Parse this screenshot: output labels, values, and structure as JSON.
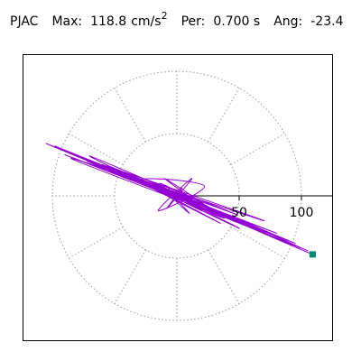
{
  "header": {
    "station": "PJAC",
    "max_label": "Max:",
    "max_value": "118.8",
    "max_unit": "cm/s",
    "max_unit_exp": "2",
    "per_label": "Per:",
    "per_value": "0.700 s",
    "ang_label": "Ang:",
    "ang_value": "-23.4"
  },
  "colors": {
    "trace": "#9400d3",
    "end_marker": "#008b74",
    "grid": "#9a9a9a",
    "axis": "#000000"
  },
  "chart_data": {
    "type": "scatter",
    "title": "PJAC  Max: 118.8 cm/s2  Per: 0.700 s  Ang: -23.4",
    "radial_ticks": [
      50,
      100
    ],
    "tick_labels": [
      "50",
      "100"
    ],
    "rings": [
      50,
      100
    ],
    "spokes_deg": [
      0,
      30,
      60,
      90,
      120,
      150,
      180,
      210,
      240,
      270,
      300,
      330
    ],
    "rmax": 100,
    "end_point": {
      "x": 109,
      "y": -47
    },
    "trace": {
      "name": "",
      "x": [
        0,
        4,
        -8,
        12,
        -15,
        22,
        -30,
        38,
        -45,
        60,
        -72,
        80,
        -90,
        95,
        -85,
        70,
        -60,
        48,
        -40,
        35,
        -28,
        20,
        -14,
        10,
        -6,
        30,
        -50,
        70,
        -95,
        105,
        -100,
        80,
        -55,
        40,
        -25,
        15,
        -10,
        25,
        -35,
        55,
        -75,
        90,
        -105,
        100,
        -70,
        50,
        -30,
        20,
        -12,
        8,
        45,
        -65,
        85,
        -98,
        75,
        -45,
        18,
        -5,
        60,
        109
      ],
      "y": [
        0,
        6,
        -10,
        14,
        -12,
        8,
        12,
        -18,
        20,
        -25,
        28,
        -30,
        33,
        -38,
        30,
        -20,
        25,
        -15,
        18,
        -22,
        12,
        -8,
        10,
        -14,
        6,
        -12,
        22,
        -28,
        38,
        -44,
        40,
        -32,
        24,
        -18,
        10,
        -6,
        14,
        -10,
        16,
        -24,
        30,
        -36,
        42,
        -42,
        32,
        -26,
        14,
        -12,
        8,
        -4,
        -20,
        26,
        -34,
        40,
        -30,
        20,
        -8,
        4,
        -26,
        -47
      ]
    }
  }
}
